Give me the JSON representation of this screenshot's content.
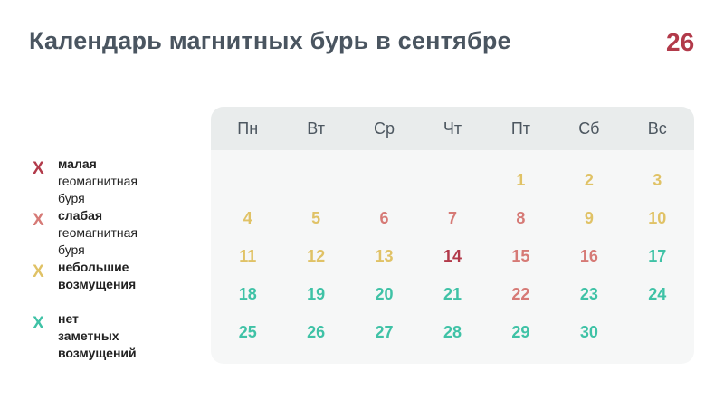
{
  "title": "Календарь магнитных бурь в сентябре",
  "logo": {
    "icon": "logo-26-icon",
    "text": "26",
    "color": "#b23a4a"
  },
  "colors": {
    "strong": "#b23a4a",
    "weak": "#d67a76",
    "minor": "#e0c266",
    "none": "#3fc2a6"
  },
  "legend": [
    {
      "mark": "X",
      "level": "strong",
      "line1": "малая",
      "line2": "геомагнитная буря"
    },
    {
      "mark": "X",
      "level": "weak",
      "line1": "слабая",
      "line2": "геомагнитная буря"
    },
    {
      "mark": "X",
      "level": "minor",
      "line1": "небольшие",
      "line2": "возмущения"
    },
    {
      "mark": "X",
      "level": "none",
      "line1": "нет заметных",
      "line2": "возмущений"
    }
  ],
  "weekdays": [
    "Пн",
    "Вт",
    "Ср",
    "Чт",
    "Пт",
    "Сб",
    "Вс"
  ],
  "first_weekday_index": 4,
  "days": [
    {
      "day": "1",
      "level": "minor"
    },
    {
      "day": "2",
      "level": "minor"
    },
    {
      "day": "3",
      "level": "minor"
    },
    {
      "day": "4",
      "level": "minor"
    },
    {
      "day": "5",
      "level": "minor"
    },
    {
      "day": "6",
      "level": "weak"
    },
    {
      "day": "7",
      "level": "weak"
    },
    {
      "day": "8",
      "level": "weak"
    },
    {
      "day": "9",
      "level": "minor"
    },
    {
      "day": "10",
      "level": "minor"
    },
    {
      "day": "11",
      "level": "minor"
    },
    {
      "day": "12",
      "level": "minor"
    },
    {
      "day": "13",
      "level": "minor"
    },
    {
      "day": "14",
      "level": "strong"
    },
    {
      "day": "15",
      "level": "weak"
    },
    {
      "day": "16",
      "level": "weak"
    },
    {
      "day": "17",
      "level": "none"
    },
    {
      "day": "18",
      "level": "none"
    },
    {
      "day": "19",
      "level": "none"
    },
    {
      "day": "20",
      "level": "none"
    },
    {
      "day": "21",
      "level": "none"
    },
    {
      "day": "22",
      "level": "weak"
    },
    {
      "day": "23",
      "level": "none"
    },
    {
      "day": "24",
      "level": "none"
    },
    {
      "day": "25",
      "level": "none"
    },
    {
      "day": "26",
      "level": "none"
    },
    {
      "day": "27",
      "level": "none"
    },
    {
      "day": "28",
      "level": "none"
    },
    {
      "day": "29",
      "level": "none"
    },
    {
      "day": "30",
      "level": "none"
    }
  ]
}
